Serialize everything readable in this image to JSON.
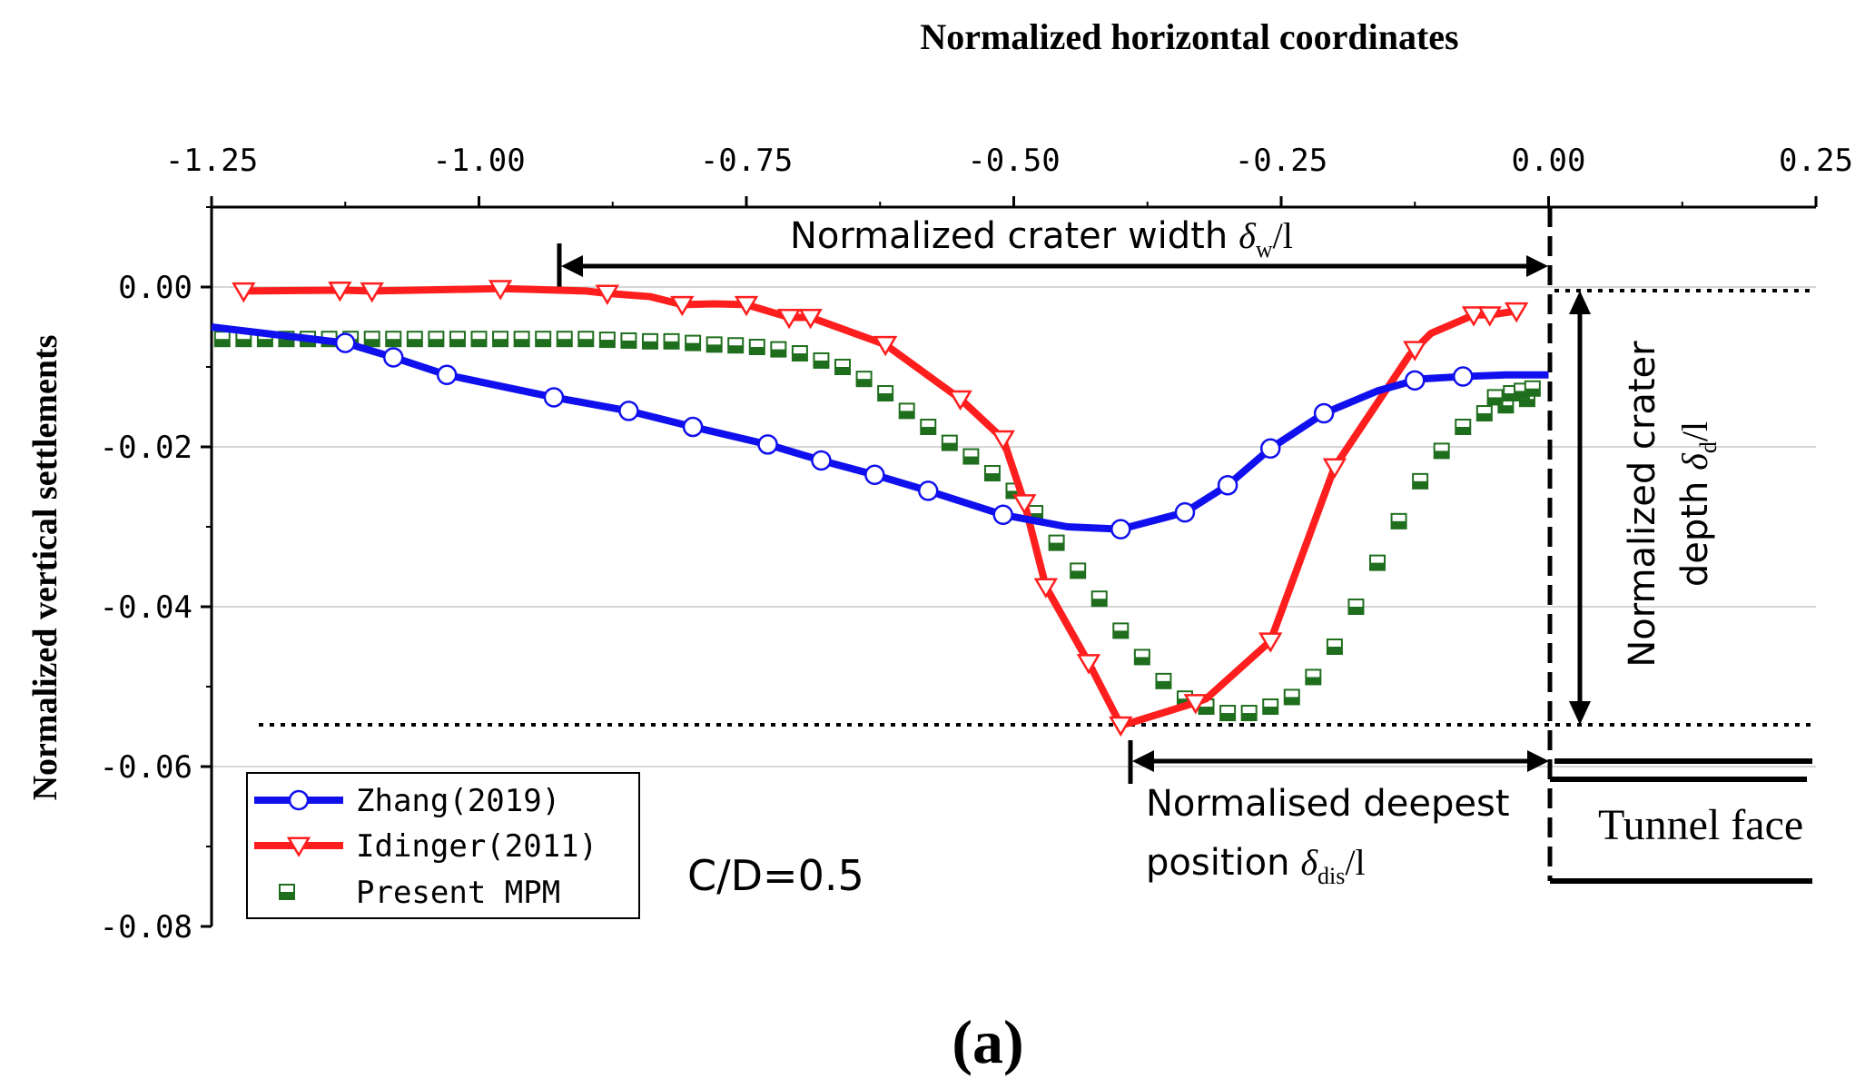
{
  "chart_data": {
    "type": "line",
    "title": "Normalized  horizontal coordinates",
    "xlabel": "Normalized  horizontal coordinates",
    "ylabel": "Normalized vertical settlements",
    "xlim": [
      -1.25,
      0.25
    ],
    "ylim": [
      -0.08,
      0.01
    ],
    "x_ticks": [
      -1.25,
      -1.0,
      -0.75,
      -0.5,
      -0.25,
      0.0,
      0.25
    ],
    "x_tick_labels": [
      "-1.25",
      "-1.00",
      "-0.75",
      "-0.50",
      "-0.25",
      "0.00",
      "0.25"
    ],
    "y_ticks": [
      0.0,
      -0.02,
      -0.04,
      -0.06,
      -0.08
    ],
    "y_tick_labels": [
      "0.00",
      "-0.02",
      "-0.04",
      "-0.06",
      "-0.08"
    ],
    "grid": "horizontal",
    "legend_position": "bottom-left",
    "series": [
      {
        "name": "Zhang(2019)",
        "color": "#1010ee",
        "marker": "circle",
        "x": [
          -1.25,
          -1.125,
          -1.08,
          -1.03,
          -0.93,
          -0.86,
          -0.8,
          -0.73,
          -0.68,
          -0.63,
          -0.58,
          -0.51,
          -0.45,
          -0.4,
          -0.34,
          -0.3,
          -0.26,
          -0.21,
          -0.16,
          -0.12,
          -0.08,
          -0.04,
          0.0
        ],
        "y": [
          -0.005,
          -0.007,
          -0.0088,
          -0.011,
          -0.0138,
          -0.0155,
          -0.0175,
          -0.0197,
          -0.0217,
          -0.0235,
          -0.0255,
          -0.0285,
          -0.03,
          -0.0303,
          -0.0282,
          -0.0248,
          -0.0202,
          -0.0158,
          -0.013,
          -0.0115,
          -0.0112,
          -0.011,
          -0.011
        ],
        "marker_x": [
          -1.125,
          -1.08,
          -1.03,
          -0.93,
          -0.86,
          -0.8,
          -0.73,
          -0.68,
          -0.63,
          -0.58,
          -0.51,
          -0.4,
          -0.34,
          -0.3,
          -0.26,
          -0.21,
          -0.125,
          -0.08
        ]
      },
      {
        "name": "Idinger(2011)",
        "color": "#ff1e1e",
        "marker": "triangle-down",
        "x": [
          -1.22,
          -1.13,
          -1.1,
          -0.98,
          -0.95,
          -0.9,
          -0.88,
          -0.84,
          -0.81,
          -0.78,
          -0.75,
          -0.71,
          -0.69,
          -0.62,
          -0.55,
          -0.51,
          -0.49,
          -0.47,
          -0.43,
          -0.4,
          -0.39,
          -0.33,
          -0.32,
          -0.26,
          -0.2,
          -0.16,
          -0.13,
          -0.11,
          -0.07,
          -0.055,
          -0.03
        ],
        "y": [
          -0.0005,
          -0.0004,
          -0.0005,
          -0.0002,
          -0.0003,
          -0.0005,
          -0.0008,
          -0.0012,
          -0.0022,
          -0.0021,
          -0.0022,
          -0.0038,
          -0.0038,
          -0.0072,
          -0.014,
          -0.019,
          -0.027,
          -0.0375,
          -0.047,
          -0.0548,
          -0.0545,
          -0.052,
          -0.0515,
          -0.0443,
          -0.0225,
          -0.0145,
          -0.0085,
          -0.0058,
          -0.0035,
          -0.0035,
          -0.003
        ],
        "marker_x": [
          -1.22,
          -1.13,
          -1.1,
          -0.98,
          -0.88,
          -0.81,
          -0.75,
          -0.71,
          -0.69,
          -0.62,
          -0.55,
          -0.51,
          -0.49,
          -0.47,
          -0.43,
          -0.4,
          -0.33,
          -0.26,
          -0.2,
          -0.125,
          -0.07,
          -0.055,
          -0.03
        ]
      },
      {
        "name": "Present MPM",
        "color": "#1e6e1e",
        "marker": "square-half",
        "x": [
          -1.24,
          -1.22,
          -1.2,
          -1.18,
          -1.16,
          -1.14,
          -1.12,
          -1.1,
          -1.08,
          -1.06,
          -1.04,
          -1.02,
          -1.0,
          -0.98,
          -0.96,
          -0.94,
          -0.92,
          -0.9,
          -0.88,
          -0.86,
          -0.84,
          -0.82,
          -0.8,
          -0.78,
          -0.76,
          -0.74,
          -0.72,
          -0.7,
          -0.68,
          -0.66,
          -0.64,
          -0.62,
          -0.6,
          -0.58,
          -0.56,
          -0.54,
          -0.52,
          -0.5,
          -0.48,
          -0.46,
          -0.44,
          -0.42,
          -0.4,
          -0.38,
          -0.36,
          -0.34,
          -0.32,
          -0.3,
          -0.28,
          -0.26,
          -0.24,
          -0.22,
          -0.2,
          -0.18,
          -0.16,
          -0.14,
          -0.12,
          -0.1,
          -0.08,
          -0.06,
          -0.04,
          -0.02
        ],
        "y": [
          -0.0065,
          -0.0065,
          -0.0065,
          -0.0065,
          -0.0065,
          -0.0065,
          -0.0065,
          -0.0065,
          -0.0065,
          -0.0065,
          -0.0065,
          -0.0065,
          -0.0065,
          -0.0065,
          -0.0065,
          -0.0065,
          -0.0065,
          -0.0065,
          -0.0066,
          -0.0067,
          -0.0068,
          -0.0068,
          -0.007,
          -0.0072,
          -0.0073,
          -0.0075,
          -0.0078,
          -0.0083,
          -0.0092,
          -0.01,
          -0.0115,
          -0.0133,
          -0.0155,
          -0.0175,
          -0.0195,
          -0.0212,
          -0.0233,
          -0.0255,
          -0.0283,
          -0.032,
          -0.0355,
          -0.039,
          -0.043,
          -0.0463,
          -0.0493,
          -0.0515,
          -0.0525,
          -0.0533,
          -0.0533,
          -0.0525,
          -0.0513,
          -0.0488,
          -0.045,
          -0.04,
          -0.0345,
          -0.0293,
          -0.0243,
          -0.0205,
          -0.0175,
          -0.0158,
          -0.0148,
          -0.014
        ],
        "extra_points": [
          [
            -0.05,
            -0.0138
          ],
          [
            -0.035,
            -0.0133
          ],
          [
            -0.025,
            -0.013
          ],
          [
            -0.015,
            -0.0127
          ]
        ]
      }
    ],
    "annotations": {
      "crater_width": "Normalized crater width",
      "crater_width_symbol": "δ",
      "crater_width_sub": "w",
      "crater_width_tail": "/l",
      "crater_depth_line1": "Normalized crater",
      "crater_depth_line2": "depth",
      "crater_depth_symbol": "δ",
      "crater_depth_sub": "d",
      "crater_depth_tail": "/l",
      "deepest_line1": "Normalised deepest",
      "deepest_line2": "position",
      "deepest_symbol": "δ",
      "deepest_sub": "dis",
      "deepest_tail": "/l",
      "tunnel_face": "Tunnel face",
      "cd_ratio": "C/D=0.5",
      "panel_label": "(a)"
    }
  }
}
